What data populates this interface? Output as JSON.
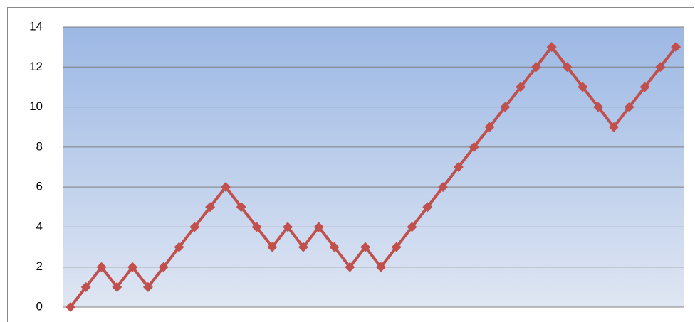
{
  "chart_data": {
    "type": "line",
    "values": [
      0,
      1,
      2,
      1,
      2,
      1,
      2,
      3,
      4,
      5,
      6,
      5,
      4,
      3,
      4,
      3,
      4,
      3,
      2,
      3,
      2,
      3,
      4,
      5,
      6,
      7,
      8,
      9,
      10,
      11,
      12,
      13,
      12,
      11,
      10,
      9,
      10,
      11,
      12,
      13
    ],
    "color": "#c0504d",
    "ylim": [
      0,
      14
    ],
    "yticks": [
      0,
      2,
      4,
      6,
      8,
      10,
      12,
      14
    ],
    "grid": true
  }
}
